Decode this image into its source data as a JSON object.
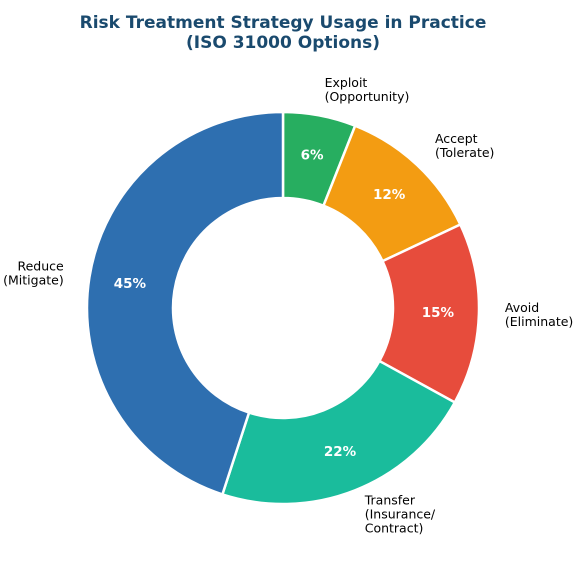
{
  "chart_data": {
    "type": "pie",
    "title": "Risk Treatment Strategy Usage in Practice\n(ISO 31000 Options)",
    "categories": [
      "Exploit\n(Opportunity)",
      "Accept\n(Tolerate)",
      "Avoid\n(Eliminate)",
      "Transfer\n(Insurance/\nContract)",
      "Reduce\n(Mitigate)"
    ],
    "values": [
      6,
      12,
      15,
      22,
      45
    ],
    "value_labels": [
      "6%",
      "12%",
      "15%",
      "22%",
      "45%"
    ],
    "colors": [
      "#27ae60",
      "#f39c12",
      "#e74c3c",
      "#1abc9c",
      "#2e6fb0"
    ]
  }
}
